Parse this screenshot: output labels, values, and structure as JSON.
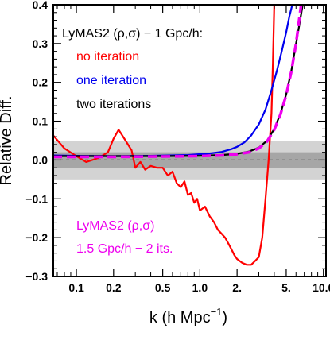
{
  "chart_data": {
    "type": "line",
    "title": "",
    "xlabel": "k (h Mpc",
    "xlabel_sup": "−1",
    "xlabel_close": ")",
    "ylabel": "Relative Diff.",
    "xscale": "log",
    "xlim": [
      0.065,
      10.5
    ],
    "ylim": [
      -0.3,
      0.4
    ],
    "x_tick_labels": [
      "0.1",
      "0.2",
      "0.5",
      "1.0",
      "2.",
      "5.",
      "10.0"
    ],
    "x_tick_values": [
      0.1,
      0.2,
      0.5,
      1.0,
      2.0,
      5.0,
      10.0
    ],
    "y_tick_labels": [
      "0.4",
      "0.3",
      "0.2",
      "0.1",
      "0.0",
      "−0.1",
      "−0.2",
      "−0.3"
    ],
    "y_tick_values": [
      0.4,
      0.3,
      0.2,
      0.1,
      0.0,
      -0.1,
      -0.2,
      -0.3
    ],
    "bands": [
      {
        "ymin": -0.05,
        "ymax": 0.05,
        "color": "#d3d3d3"
      },
      {
        "ymin": -0.02,
        "ymax": 0.02,
        "color": "#a6a6a6"
      }
    ],
    "reference_line": {
      "y": 0.0,
      "style": "dashed",
      "color": "#000000"
    },
    "legend_upper": {
      "title": "LyMAS2 (ρ,σ) − 1 Gpc/h:",
      "entries": [
        {
          "label": "no iteration",
          "color": "#ff0000"
        },
        {
          "label": "one iteration",
          "color": "#0000ee"
        },
        {
          "label": "two iterations",
          "color": "#000000"
        }
      ]
    },
    "legend_lower": {
      "entries": [
        {
          "label": "LyMAS2 (ρ,σ)",
          "color": "#ee00ee"
        },
        {
          "label": "1.5 Gpc/h − 2 its.",
          "color": "#ee00ee"
        }
      ]
    },
    "series": [
      {
        "name": "no iteration",
        "color": "#ff0000",
        "style": "solid",
        "x": [
          0.065,
          0.08,
          0.1,
          0.12,
          0.15,
          0.18,
          0.2,
          0.22,
          0.25,
          0.28,
          0.3,
          0.33,
          0.36,
          0.4,
          0.45,
          0.5,
          0.55,
          0.6,
          0.65,
          0.7,
          0.75,
          0.8,
          0.85,
          0.9,
          0.95,
          1.0,
          1.1,
          1.2,
          1.3,
          1.4,
          1.5,
          1.6,
          1.7,
          1.8,
          1.9,
          2.0,
          2.2,
          2.4,
          2.6,
          2.8,
          3.0,
          3.2,
          3.4,
          3.6,
          3.8,
          3.9,
          4.0
        ],
        "y": [
          0.063,
          0.03,
          0.01,
          -0.005,
          0.005,
          0.02,
          0.055,
          0.078,
          0.05,
          0.025,
          -0.02,
          -0.005,
          -0.025,
          -0.015,
          -0.02,
          -0.02,
          -0.04,
          -0.03,
          -0.06,
          -0.07,
          -0.055,
          -0.09,
          -0.085,
          -0.11,
          -0.1,
          -0.13,
          -0.12,
          -0.145,
          -0.16,
          -0.18,
          -0.19,
          -0.2,
          -0.215,
          -0.23,
          -0.245,
          -0.255,
          -0.265,
          -0.27,
          -0.27,
          -0.26,
          -0.25,
          -0.2,
          -0.1,
          0.0,
          0.12,
          0.25,
          0.4
        ]
      },
      {
        "name": "one iteration",
        "color": "#0000ee",
        "style": "solid",
        "x": [
          0.065,
          0.1,
          0.2,
          0.4,
          0.8,
          1.2,
          1.5,
          1.8,
          2.0,
          2.3,
          2.6,
          3.0,
          3.4,
          3.8,
          4.2,
          4.6,
          5.0,
          5.3,
          5.6
        ],
        "y": [
          0.012,
          0.011,
          0.01,
          0.011,
          0.013,
          0.017,
          0.021,
          0.028,
          0.034,
          0.046,
          0.063,
          0.092,
          0.13,
          0.18,
          0.23,
          0.28,
          0.33,
          0.37,
          0.4
        ]
      },
      {
        "name": "two iterations",
        "color": "#000000",
        "style": "solid",
        "x": [
          0.065,
          0.1,
          0.2,
          0.5,
          1.0,
          1.5,
          2.0,
          2.5,
          3.0,
          3.5,
          4.0,
          4.5,
          5.0,
          5.5,
          6.0,
          6.4,
          6.8
        ],
        "y": [
          0.01,
          0.01,
          0.01,
          0.01,
          0.011,
          0.013,
          0.016,
          0.022,
          0.032,
          0.05,
          0.08,
          0.12,
          0.17,
          0.23,
          0.3,
          0.35,
          0.4
        ]
      },
      {
        "name": "LyMAS2 (ρ,σ) 1.5 Gpc/h − 2 its.",
        "color": "#ee00ee",
        "style": "dashed",
        "x": [
          0.065,
          0.1,
          0.2,
          0.5,
          1.0,
          1.5,
          2.0,
          2.5,
          3.0,
          3.5,
          4.0,
          4.5,
          5.0,
          5.5,
          6.0,
          6.3,
          6.6
        ],
        "y": [
          0.008,
          0.008,
          0.008,
          0.009,
          0.01,
          0.012,
          0.015,
          0.02,
          0.03,
          0.048,
          0.078,
          0.118,
          0.168,
          0.228,
          0.3,
          0.35,
          0.4
        ]
      }
    ]
  }
}
